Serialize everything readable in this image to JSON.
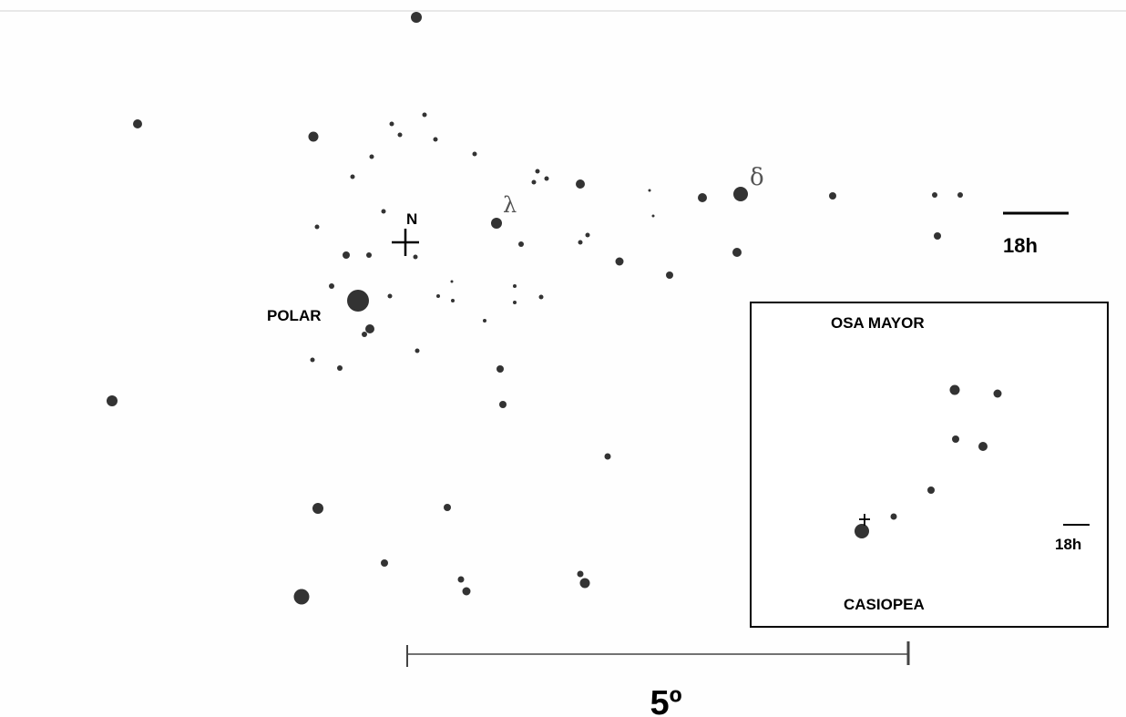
{
  "labels": {
    "north": "N",
    "polar": "POLAR",
    "lambda": "λ",
    "delta": "δ",
    "ra_scale": "18h",
    "scale": "5º"
  },
  "inset": {
    "top_label": "OSA MAYOR",
    "bottom_label": "CASIOPEA",
    "ra_scale": "18h"
  },
  "colors": {
    "ink": "#000000",
    "star": "#333333",
    "paper": "#fefefe"
  }
}
